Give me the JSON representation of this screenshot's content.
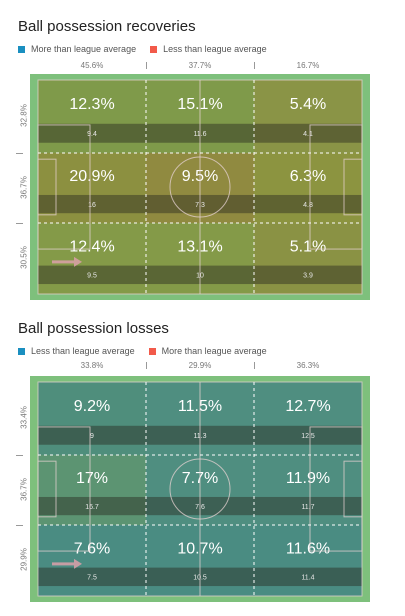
{
  "chart_data": [
    {
      "type": "heatmap",
      "title": "Ball possession recoveries",
      "legend": [
        {
          "label": "More than league average",
          "color": "#1a8fc0"
        },
        {
          "label": "Less than league average",
          "color": "#f25a4a"
        }
      ],
      "col_labels": [
        "45.6%",
        "37.7%",
        "16.7%"
      ],
      "row_labels": [
        "32.8%",
        "36.7%",
        "30.5%"
      ],
      "percents": [
        [
          "12.3%",
          "15.1%",
          "5.4%"
        ],
        [
          "20.9%",
          "9.5%",
          "6.3%"
        ],
        [
          "12.4%",
          "13.1%",
          "5.1%"
        ]
      ],
      "counts": [
        [
          "9.4",
          "11.6",
          "4.1"
        ],
        [
          "16",
          "7.3",
          "4.8"
        ],
        [
          "9.5",
          "10",
          "3.9"
        ]
      ],
      "colors": [
        [
          "#7f9a4a",
          "#7f9a4a",
          "#8a9446"
        ],
        [
          "#8c9040",
          "#908a40",
          "#8c9440"
        ],
        [
          "#849a48",
          "#849a48",
          "#8a9244"
        ]
      ]
    },
    {
      "type": "heatmap",
      "title": "Ball possession losses",
      "legend": [
        {
          "label": "Less than league average",
          "color": "#1a8fc0"
        },
        {
          "label": "More than league average",
          "color": "#f25a4a"
        }
      ],
      "col_labels": [
        "33.8%",
        "29.9%",
        "36.3%"
      ],
      "row_labels": [
        "33.4%",
        "36.7%",
        "29.9%"
      ],
      "percents": [
        [
          "9.2%",
          "11.5%",
          "12.7%"
        ],
        [
          "17%",
          "7.7%",
          "11.9%"
        ],
        [
          "7.6%",
          "10.7%",
          "11.6%"
        ]
      ],
      "counts": [
        [
          "9",
          "11.3",
          "12.5"
        ],
        [
          "16.7",
          "7.6",
          "11.7"
        ],
        [
          "7.5",
          "10.5",
          "11.4"
        ]
      ],
      "colors": [
        [
          "#4f8e7c",
          "#4f8e80",
          "#4f8e80"
        ],
        [
          "#5c9472",
          "#4f8e80",
          "#4f8e80"
        ],
        [
          "#4a8c82",
          "#4a8c82",
          "#4a8c82"
        ]
      ]
    }
  ]
}
